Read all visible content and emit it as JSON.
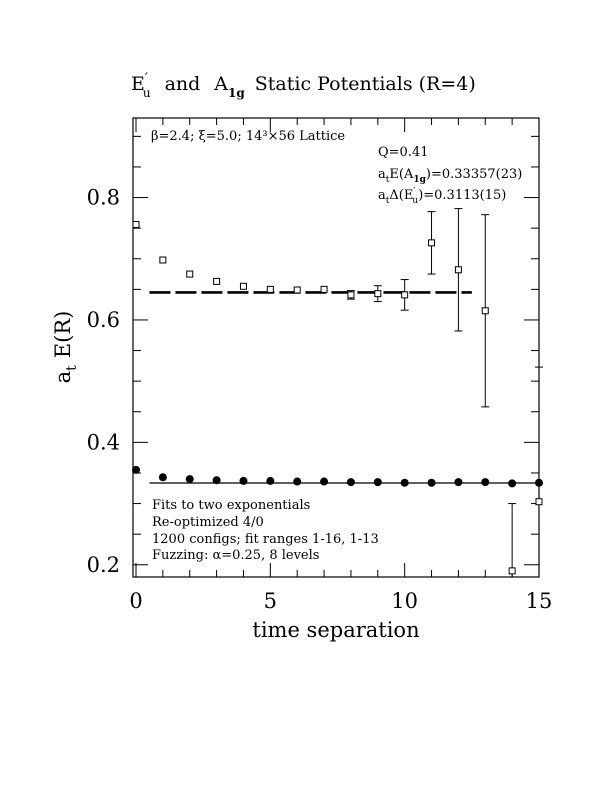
{
  "chart_data": {
    "type": "scatter",
    "title": {
      "part1_main": "E",
      "part1_sup": "′",
      "part1_sub": "u",
      "and": "and",
      "part2_main": "A",
      "part2_sub": "1g",
      "rest": "Static Potentials (R=4)"
    },
    "xlabel": "time separation",
    "ylabel": {
      "main": "a",
      "sub": "t",
      "rest": "E(R)"
    },
    "xlim": [
      0,
      15
    ],
    "ylim": [
      0.18,
      0.93
    ],
    "x_ticks": [
      0,
      5,
      10,
      15
    ],
    "x_tick_labels": [
      "0",
      "5",
      "10",
      "15"
    ],
    "y_ticks": [
      0.2,
      0.4,
      0.6,
      0.8
    ],
    "y_tick_labels": [
      "0.2",
      "0.4",
      "0.6",
      "0.8"
    ],
    "grid": false,
    "lattice_label": "β=2.4; ξ=5.0; 14³×56 Lattice",
    "fit_info": {
      "q": "Q=0.41",
      "e_a1g": {
        "pre": "a",
        "pre_sub": "t",
        "mid": "E(A",
        "mid_sub": "1g",
        "post": ")=0.33357(23)"
      },
      "delta_eu": {
        "pre": "a",
        "pre_sub": "t",
        "mid": "Δ(E",
        "mid_sup": "′",
        "mid_sub": "u",
        "post": ")=0.3113(15)"
      }
    },
    "notes": [
      "Fits to two exponentials",
      "Re-optimized 4/0",
      "1200 configs; fit ranges 1-16, 1-13",
      "Fuzzing: α=0.25, 8 levels"
    ],
    "series": [
      {
        "name": "A1g",
        "marker": "filled-circle",
        "x": [
          0,
          1,
          2,
          3,
          4,
          5,
          6,
          7,
          8,
          9,
          10,
          11,
          12,
          13,
          14,
          15
        ],
        "y": [
          0.355,
          0.343,
          0.34,
          0.338,
          0.337,
          0.337,
          0.336,
          0.336,
          0.335,
          0.335,
          0.334,
          0.334,
          0.335,
          0.335,
          0.333,
          0.334
        ],
        "err": [
          0.001,
          0.001,
          0.001,
          0.001,
          0.001,
          0.001,
          0.001,
          0.001,
          0.001,
          0.001,
          0.001,
          0.001,
          0.001,
          0.001,
          0.001,
          0.001
        ]
      },
      {
        "name": "Eu'",
        "marker": "open-square",
        "x": [
          0,
          1,
          2,
          3,
          4,
          5,
          6,
          7,
          8,
          9,
          10,
          11,
          12,
          13,
          14,
          15
        ],
        "y": [
          0.756,
          0.698,
          0.675,
          0.663,
          0.655,
          0.65,
          0.649,
          0.65,
          0.641,
          0.643,
          0.641,
          0.726,
          0.682,
          0.615,
          0.19,
          0.303
        ],
        "err": [
          0.004,
          0.003,
          0.003,
          0.003,
          0.004,
          0.004,
          0.004,
          0.004,
          0.007,
          0.013,
          0.025,
          0.051,
          0.1,
          0.157,
          0.11,
          0.22
        ]
      }
    ],
    "fits": [
      {
        "name": "A1g fit",
        "style": "solid",
        "x": [
          0.5,
          15
        ],
        "y": 0.33357
      },
      {
        "name": "Eu' fit",
        "style": "dashed",
        "x": [
          0.5,
          12.5
        ],
        "y": 0.6449
      }
    ]
  }
}
